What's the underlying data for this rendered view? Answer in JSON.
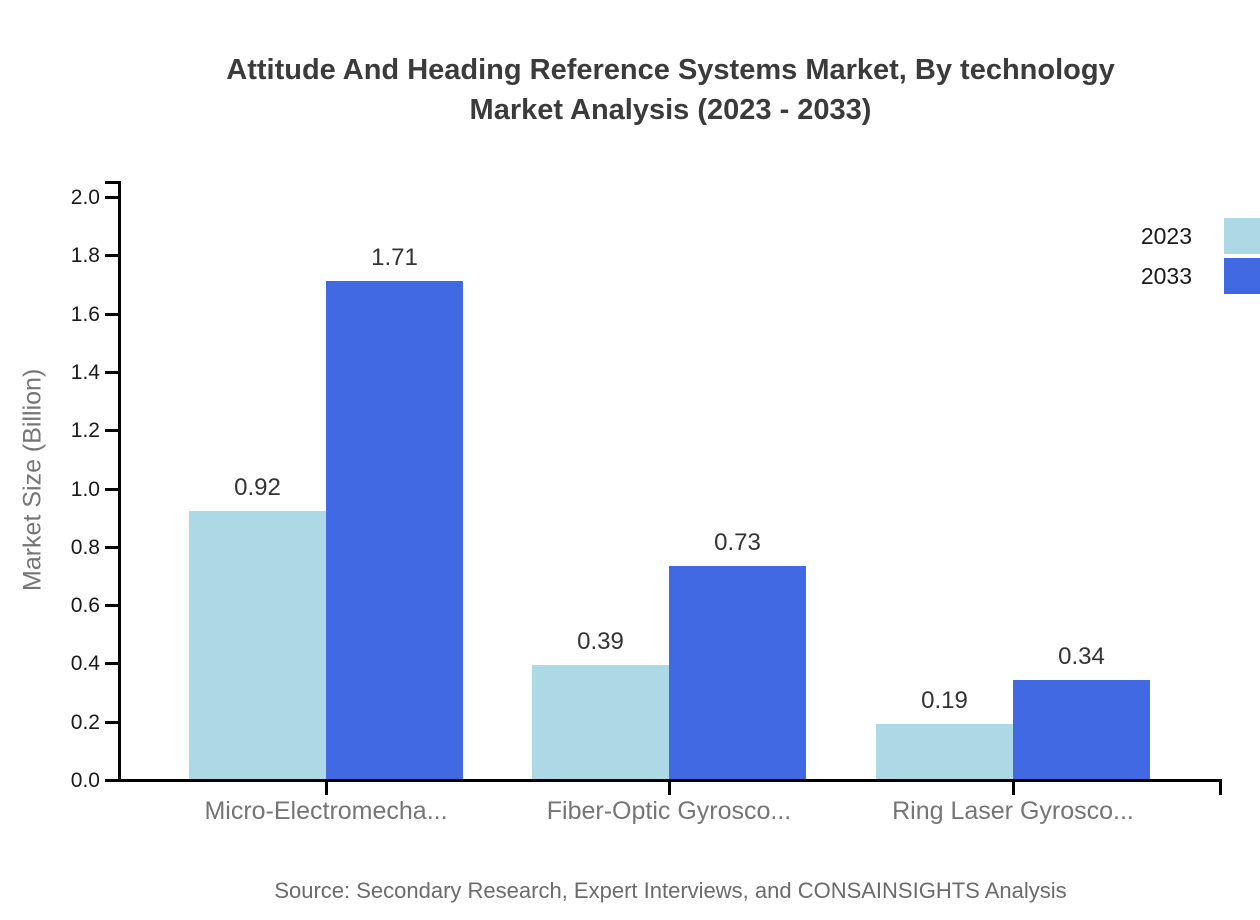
{
  "page": {
    "background": "#ffffff"
  },
  "chart_data": {
    "type": "bar",
    "title_lines": [
      "Attitude And Heading Reference Systems Market, By technology",
      "Market Analysis (2023 - 2033)"
    ],
    "categories": [
      "Micro-Electromecha...",
      "Fiber-Optic Gyrosco...",
      "Ring Laser Gyrosco..."
    ],
    "series": [
      {
        "name": "2023",
        "color": "#ADD8E6",
        "values": [
          0.92,
          0.39,
          0.19
        ]
      },
      {
        "name": "2033",
        "color": "#4169E1",
        "values": [
          1.71,
          0.73,
          0.34
        ]
      }
    ],
    "ylabel": "Market Size (Billion)",
    "ylim": [
      0.0,
      2.0
    ],
    "yticks": [
      0.0,
      0.2,
      0.4,
      0.6,
      0.8,
      1.0,
      1.2,
      1.4,
      1.6,
      1.8,
      2.0
    ],
    "grid": false,
    "legend_position": "top-right",
    "source_note": "Source: Secondary Research, Expert Interviews, and CONSAINSIGHTS Analysis"
  }
}
